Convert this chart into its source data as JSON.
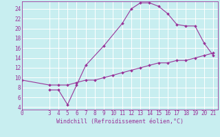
{
  "xlabel": "Windchill (Refroidissement éolien,°C)",
  "bg_color": "#c8eef0",
  "grid_color": "#ffffff",
  "line_color": "#993399",
  "spine_color": "#993399",
  "x_ticks": [
    0,
    3,
    4,
    5,
    6,
    7,
    8,
    9,
    10,
    11,
    12,
    13,
    14,
    15,
    16,
    17,
    18,
    19,
    20,
    21
  ],
  "y_ticks": [
    4,
    6,
    8,
    10,
    12,
    14,
    16,
    18,
    20,
    22,
    24
  ],
  "xlim": [
    0,
    21.5
  ],
  "ylim": [
    3.5,
    25.5
  ],
  "curve1_x": [
    3,
    4,
    5,
    6,
    7,
    9,
    11,
    12,
    13,
    14,
    15,
    16,
    17,
    18,
    19,
    20,
    21
  ],
  "curve1_y": [
    7.5,
    7.5,
    4.5,
    8.5,
    12.5,
    16.5,
    21.0,
    24.0,
    25.2,
    25.2,
    24.5,
    23.0,
    20.8,
    20.5,
    20.5,
    17.0,
    14.5
  ],
  "curve2_x": [
    0,
    3,
    4,
    5,
    6,
    7,
    8,
    9,
    10,
    11,
    12,
    13,
    14,
    15,
    16,
    17,
    18,
    19,
    20,
    21
  ],
  "curve2_y": [
    9.5,
    8.5,
    8.5,
    8.5,
    9.0,
    9.5,
    9.5,
    10.0,
    10.5,
    11.0,
    11.5,
    12.0,
    12.5,
    13.0,
    13.0,
    13.5,
    13.5,
    14.0,
    14.5,
    15.0
  ],
  "tick_fontsize": 5.5,
  "xlabel_fontsize": 6.0
}
